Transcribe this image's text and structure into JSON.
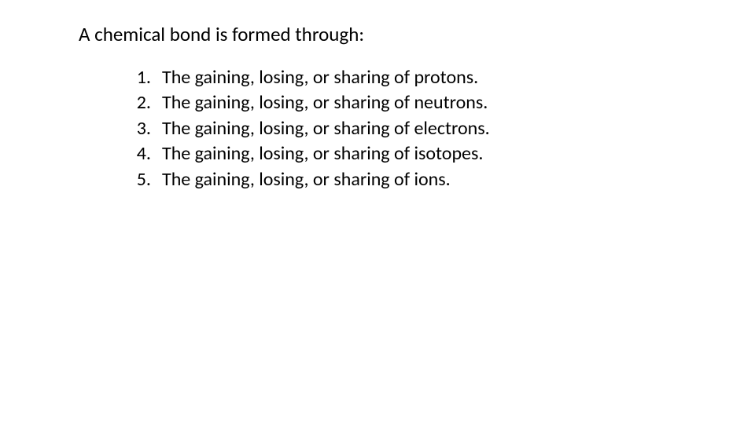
{
  "title": "A chemical bond is formed through:",
  "items": [
    {
      "number": "1.",
      "text": "The gaining, losing, or sharing of protons."
    },
    {
      "number": "2.",
      "text": "The gaining, losing, or sharing of neutrons."
    },
    {
      "number": "3.",
      "text": "The gaining, losing, or sharing of electrons."
    },
    {
      "number": "4.",
      "text": "The gaining, losing, or sharing of isotopes."
    },
    {
      "number": "5.",
      "text": "The gaining, losing, or sharing of ions."
    }
  ],
  "colors": {
    "background": "#ffffff",
    "text": "#000000"
  },
  "typography": {
    "title_fontsize": 25,
    "list_fontsize": 24,
    "font_family": "Calibri"
  }
}
